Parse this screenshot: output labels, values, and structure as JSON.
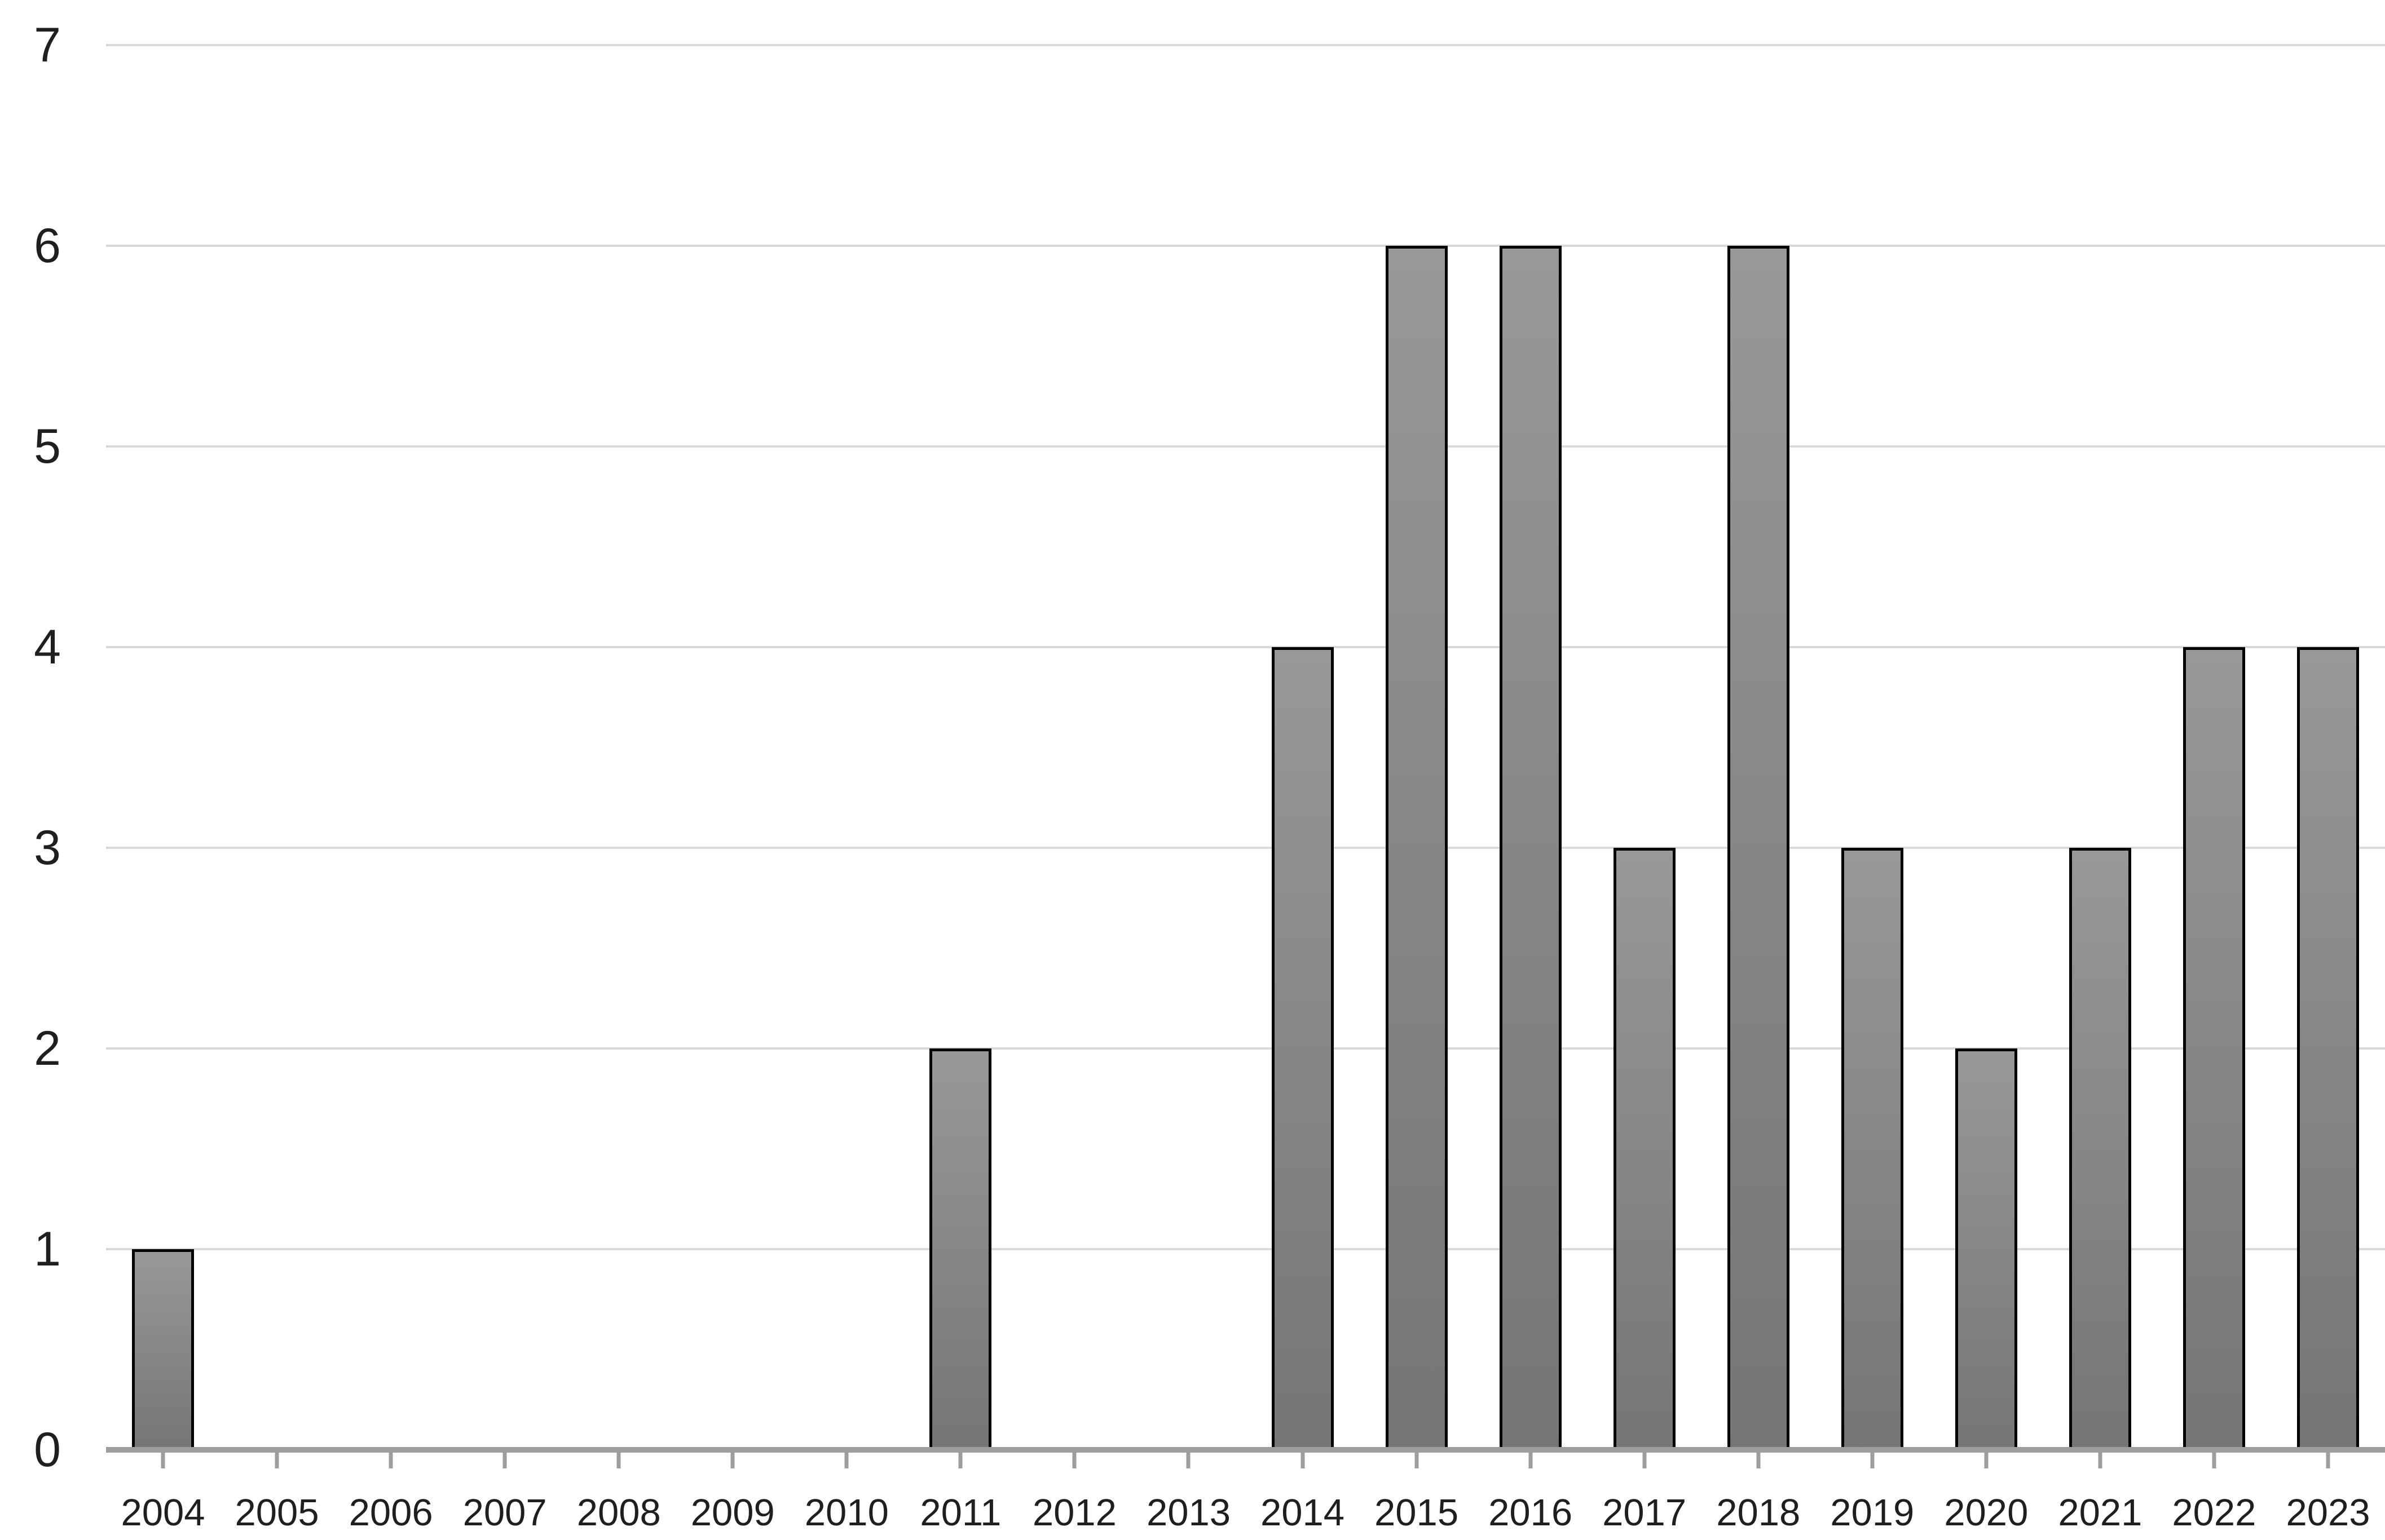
{
  "chart_data": {
    "type": "bar",
    "title": "",
    "xlabel": "",
    "ylabel": "",
    "categories": [
      "2004",
      "2005",
      "2006",
      "2007",
      "2008",
      "2009",
      "2010",
      "2011",
      "2012",
      "2013",
      "2014",
      "2015",
      "2016",
      "2017",
      "2018",
      "2019",
      "2020",
      "2021",
      "2022",
      "2023"
    ],
    "values": [
      1,
      0,
      0,
      0,
      0,
      0,
      0,
      2,
      0,
      0,
      4,
      6,
      6,
      3,
      6,
      3,
      2,
      3,
      4,
      4
    ],
    "ylim": [
      0,
      7
    ],
    "yticks": [
      0,
      1,
      2,
      3,
      4,
      5,
      6,
      7
    ],
    "grid": true,
    "legend_position": "none",
    "colors": {
      "bar_fill_top": "#989898",
      "bar_fill_bottom": "#757575",
      "bar_border": "#000000",
      "gridline": "#d9d9d9",
      "axis_line": "#9d9d9d",
      "tick": "#9d9d9d",
      "label_text": "#1f1f1f"
    }
  }
}
